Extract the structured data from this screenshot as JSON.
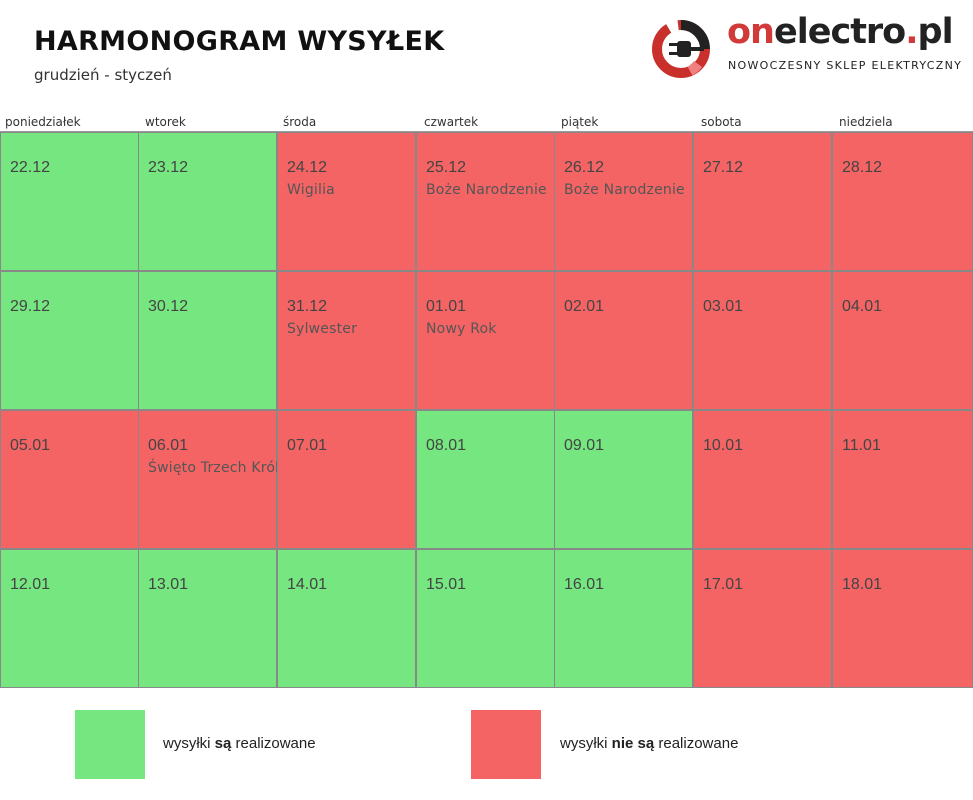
{
  "header": {
    "title": "HARMONOGRAM WYSYŁEK",
    "subtitle": "grudzień - styczeń"
  },
  "logo": {
    "brand_on": "on",
    "brand_rest": "electro",
    "brand_dot": ".",
    "brand_tld": "pl",
    "tagline": "NOWOCZESNY SKLEP ELEKTRYCZNY"
  },
  "colors": {
    "green": "#75E680",
    "red": "#F46464"
  },
  "days": [
    "poniedziałek",
    "wtorek",
    "środa",
    "czwartek",
    "piątek",
    "sobota",
    "niedziela"
  ],
  "weeks": [
    [
      {
        "date": "22.12",
        "note": "",
        "status": "green"
      },
      {
        "date": "23.12",
        "note": "",
        "status": "green"
      },
      {
        "date": "24.12",
        "note": "Wigilia",
        "status": "red"
      },
      {
        "date": "25.12",
        "note": "Boże Narodzenie",
        "status": "red"
      },
      {
        "date": "26.12",
        "note": "Boże Narodzenie",
        "status": "red"
      },
      {
        "date": "27.12",
        "note": "",
        "status": "red"
      },
      {
        "date": "28.12",
        "note": "",
        "status": "red"
      }
    ],
    [
      {
        "date": "29.12",
        "note": "",
        "status": "green"
      },
      {
        "date": "30.12",
        "note": "",
        "status": "green"
      },
      {
        "date": "31.12",
        "note": "Sylwester",
        "status": "red"
      },
      {
        "date": "01.01",
        "note": "Nowy Rok",
        "status": "red"
      },
      {
        "date": "02.01",
        "note": "",
        "status": "red"
      },
      {
        "date": "03.01",
        "note": "",
        "status": "red"
      },
      {
        "date": "04.01",
        "note": "",
        "status": "red"
      }
    ],
    [
      {
        "date": "05.01",
        "note": "",
        "status": "red"
      },
      {
        "date": "06.01",
        "note": "Święto Trzech Króli",
        "status": "red"
      },
      {
        "date": "07.01",
        "note": "",
        "status": "red"
      },
      {
        "date": "08.01",
        "note": "",
        "status": "green"
      },
      {
        "date": "09.01",
        "note": "",
        "status": "green"
      },
      {
        "date": "10.01",
        "note": "",
        "status": "red"
      },
      {
        "date": "11.01",
        "note": "",
        "status": "red"
      }
    ],
    [
      {
        "date": "12.01",
        "note": "",
        "status": "green"
      },
      {
        "date": "13.01",
        "note": "",
        "status": "green"
      },
      {
        "date": "14.01",
        "note": "",
        "status": "green"
      },
      {
        "date": "15.01",
        "note": "",
        "status": "green"
      },
      {
        "date": "16.01",
        "note": "",
        "status": "green"
      },
      {
        "date": "17.01",
        "note": "",
        "status": "red"
      },
      {
        "date": "18.01",
        "note": "",
        "status": "red"
      }
    ]
  ],
  "legend": {
    "green": {
      "pre": "wysyłki ",
      "bold": "są",
      "post": " realizowane"
    },
    "red": {
      "pre": "wysyłki ",
      "bold": "nie są",
      "post": " realizowane"
    }
  }
}
